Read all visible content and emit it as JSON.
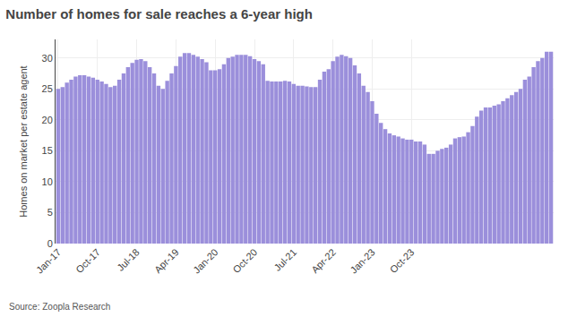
{
  "chart_data": {
    "type": "bar",
    "title": "Number of homes for sale reaches a 6-year high",
    "ylabel": "Homes on market per estate agent",
    "annotations": [
      "Source: Zoopla Research"
    ],
    "color": "#9b8fdb",
    "grid": true,
    "ylim": [
      0,
      33
    ],
    "yticks": [
      0,
      5,
      10,
      15,
      20,
      25,
      30
    ],
    "categories": [
      "Jan-17",
      null,
      null,
      null,
      null,
      null,
      null,
      null,
      null,
      "Oct-17",
      null,
      null,
      null,
      null,
      null,
      null,
      null,
      null,
      "Jul-18",
      null,
      null,
      null,
      null,
      null,
      null,
      null,
      null,
      "Apr-19",
      null,
      null,
      null,
      null,
      null,
      null,
      null,
      null,
      "Jan-20",
      null,
      null,
      null,
      null,
      null,
      null,
      null,
      null,
      "Oct-20",
      null,
      null,
      null,
      null,
      null,
      null,
      null,
      null,
      "Jul-21",
      null,
      null,
      null,
      null,
      null,
      null,
      null,
      null,
      "Apr-22",
      null,
      null,
      null,
      null,
      null,
      null,
      null,
      null,
      "Jan-23",
      null,
      null,
      null,
      null,
      null,
      null,
      null,
      null,
      "Oct-23",
      null,
      null,
      null,
      null,
      null,
      null,
      null,
      null,
      null,
      null,
      null,
      null,
      null,
      null,
      null,
      null,
      null,
      null,
      null,
      null,
      null,
      null,
      null,
      null,
      null,
      null,
      null,
      null,
      null,
      null,
      null,
      null
    ],
    "values": [
      25.0,
      25.3,
      26.0,
      26.5,
      27.0,
      27.2,
      27.2,
      27.0,
      26.8,
      26.5,
      26.2,
      25.8,
      25.3,
      25.5,
      26.5,
      27.5,
      28.5,
      29.2,
      29.7,
      29.8,
      29.5,
      28.5,
      27.5,
      25.5,
      25.0,
      26.3,
      27.5,
      28.7,
      30.2,
      30.8,
      30.8,
      30.5,
      30.2,
      29.8,
      29.3,
      28.0,
      28.0,
      28.2,
      29.0,
      30.0,
      30.2,
      30.5,
      30.5,
      30.5,
      30.3,
      29.8,
      29.5,
      29.0,
      26.3,
      26.2,
      26.2,
      26.2,
      26.3,
      26.2,
      25.8,
      25.5,
      25.5,
      25.4,
      25.3,
      25.3,
      26.5,
      27.8,
      28.2,
      29.5,
      30.2,
      30.5,
      30.3,
      30.0,
      28.8,
      27.5,
      25.5,
      24.5,
      23.0,
      21.0,
      19.5,
      18.5,
      17.8,
      17.5,
      17.3,
      17.0,
      16.8,
      16.8,
      16.5,
      16.5,
      16.0,
      14.5,
      14.5,
      15.0,
      15.3,
      15.5,
      16.0,
      17.0,
      17.2,
      17.3,
      18.0,
      19.0,
      20.5,
      21.5,
      22.0,
      22.0,
      22.3,
      22.5,
      23.0,
      23.5,
      24.0,
      24.5,
      25.0,
      26.5,
      27.0,
      28.5,
      29.5,
      30.0,
      31.0,
      31.0
    ]
  }
}
